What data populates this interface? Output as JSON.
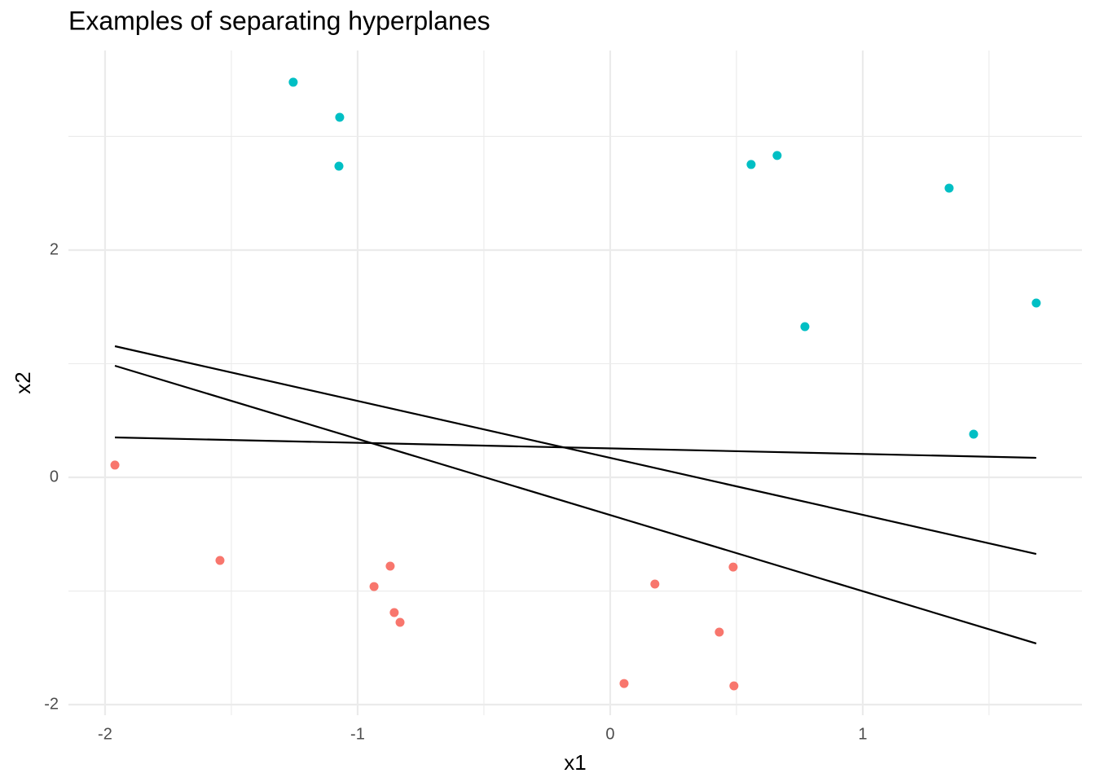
{
  "chart_data": {
    "type": "scatter",
    "title": "Examples of separating hyperplanes",
    "x_label": "x1",
    "y_label": "x2",
    "xlim": [
      -2.145,
      1.868
    ],
    "ylim": [
      -2.093,
      3.756
    ],
    "xticks": [
      -2,
      -1,
      0,
      1
    ],
    "yticks": [
      -2,
      0,
      2
    ],
    "x_minor_grid": [
      -1.5,
      -0.5,
      0.5,
      1.5
    ],
    "y_minor_grid": [
      -1,
      1,
      3
    ],
    "grid": true,
    "series": [
      {
        "color": "#00BFC4",
        "x": [
          -1.255,
          -1.071,
          -1.074,
          0.558,
          0.661,
          1.342,
          1.687,
          0.771,
          1.439
        ],
        "values": [
          3.477,
          3.168,
          2.738,
          2.753,
          2.832,
          2.545,
          1.534,
          1.326,
          0.38
        ]
      },
      {
        "color": "#F8766D",
        "x": [
          -1.961,
          -1.545,
          -0.871,
          -0.935,
          -0.855,
          -0.832,
          0.177,
          0.487,
          0.432,
          0.055,
          0.49
        ],
        "values": [
          0.108,
          -0.731,
          -0.781,
          -0.961,
          -1.19,
          -1.276,
          -0.939,
          -0.789,
          -1.362,
          -1.814,
          -1.835
        ]
      }
    ],
    "lines": [
      {
        "color": "#000000",
        "x": [
          -1.961,
          1.687
        ],
        "values": [
          1.154,
          -0.674
        ]
      },
      {
        "color": "#000000",
        "x": [
          -1.961,
          1.687
        ],
        "values": [
          0.982,
          -1.462
        ]
      },
      {
        "color": "#000000",
        "x": [
          -1.961,
          1.687
        ],
        "values": [
          0.351,
          0.172
        ]
      }
    ]
  }
}
